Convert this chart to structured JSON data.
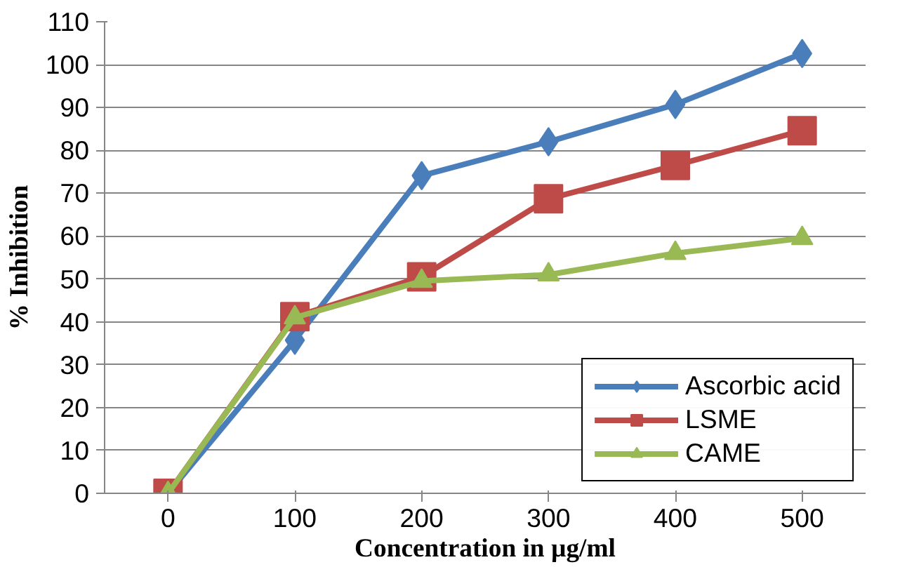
{
  "chart_data": {
    "type": "line",
    "xlabel": "Concentration in µg/ml",
    "ylabel": "% Inhibition",
    "categories": [
      "0",
      "100",
      "200",
      "300",
      "400",
      "500"
    ],
    "ylim": [
      0,
      110
    ],
    "yticks": [
      0,
      10,
      20,
      30,
      40,
      50,
      60,
      70,
      80,
      90,
      100,
      110
    ],
    "grid": "y",
    "legend": "bottom right",
    "line_style": "solid",
    "series": [
      {
        "name": "Ascorbic acid",
        "color": "#4a7ebb",
        "marker": "diamond",
        "values": [
          0,
          35.7,
          74.1,
          82,
          90.7,
          102.6
        ]
      },
      {
        "name": "LSME",
        "color": "#be4b48",
        "marker": "square",
        "values": [
          0,
          41.2,
          50.5,
          68.7,
          76.5,
          84.6
        ]
      },
      {
        "name": "CAME",
        "color": "#98b954",
        "marker": "triangle",
        "values": [
          0,
          41,
          49.5,
          51,
          56,
          59.5
        ]
      }
    ]
  }
}
